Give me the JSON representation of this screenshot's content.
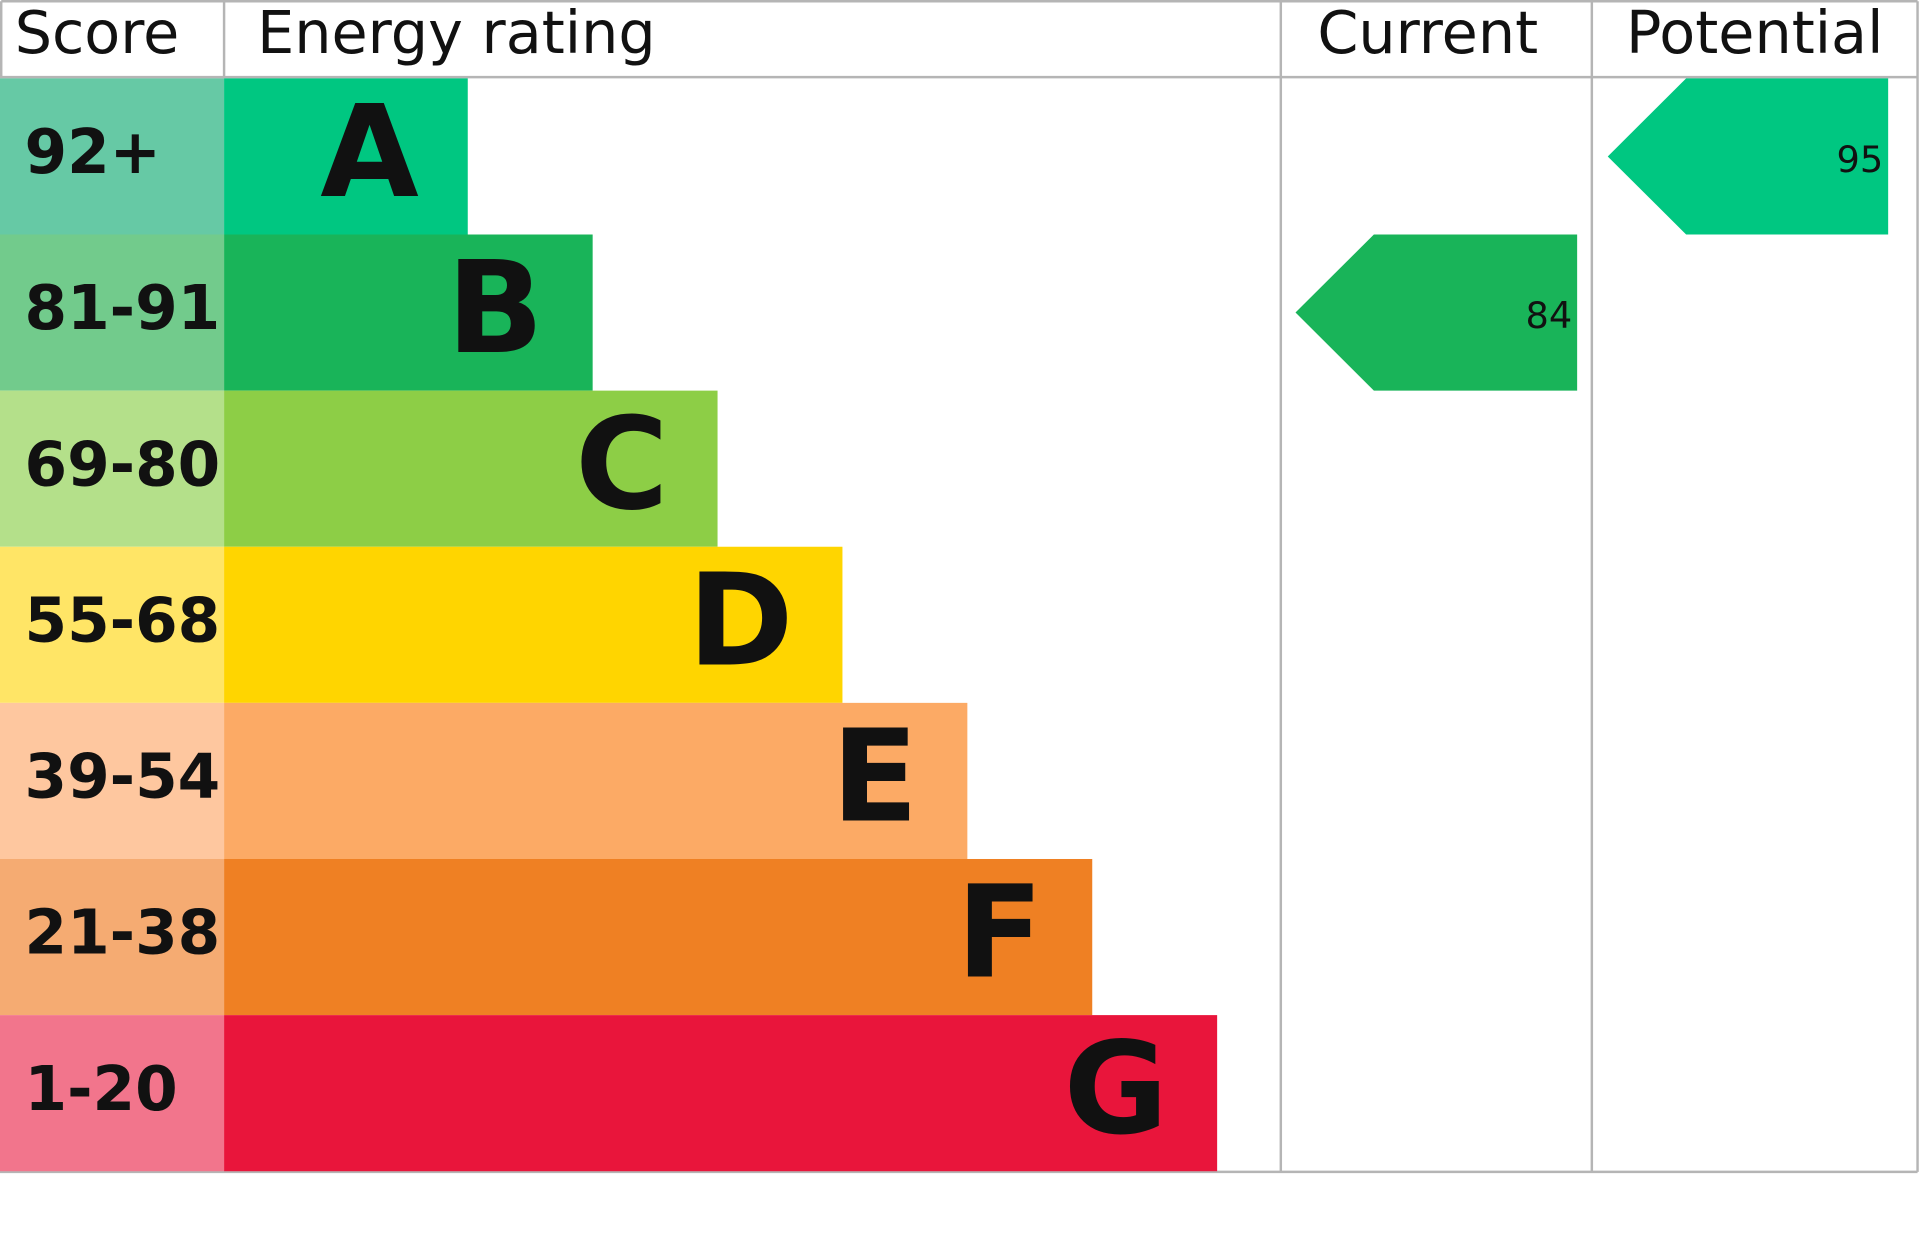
{
  "chart_data": {
    "type": "energy-rating",
    "headers": {
      "score": "Score",
      "rating": "Energy rating",
      "current": "Current",
      "potential": "Potential"
    },
    "bands": [
      {
        "score": "92+",
        "letter": "A",
        "color": "#00c781",
        "score_color": "#66c9a5"
      },
      {
        "score": "81-91",
        "letter": "B",
        "color": "#19b459",
        "score_color": "#72cb8c"
      },
      {
        "score": "69-80",
        "letter": "C",
        "color": "#8dce46",
        "score_color": "#b4e08a"
      },
      {
        "score": "55-68",
        "letter": "D",
        "color": "#ffd500",
        "score_color": "#ffe566"
      },
      {
        "score": "39-54",
        "letter": "E",
        "color": "#fcaa65",
        "score_color": "#fec79f"
      },
      {
        "score": "21-38",
        "letter": "F",
        "color": "#ef8023",
        "score_color": "#f5ab72"
      },
      {
        "score": "1-20",
        "letter": "G",
        "color": "#e9153b",
        "score_color": "#f2758c"
      }
    ],
    "current": {
      "value": 84,
      "color": "#19b459"
    },
    "potential": {
      "value": 95,
      "color": "#00c781"
    }
  }
}
